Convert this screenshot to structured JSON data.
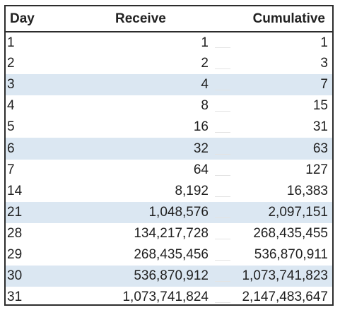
{
  "headers": {
    "day": "Day",
    "receive": "Receive",
    "cumulative": "Cumulative"
  },
  "rows": [
    {
      "day": "1",
      "receive": "1",
      "cumulative": "1"
    },
    {
      "day": "2",
      "receive": "2",
      "cumulative": "3"
    },
    {
      "day": "3",
      "receive": "4",
      "cumulative": "7"
    },
    {
      "day": "4",
      "receive": "8",
      "cumulative": "15"
    },
    {
      "day": "5",
      "receive": "16",
      "cumulative": "31"
    },
    {
      "day": "6",
      "receive": "32",
      "cumulative": "63"
    },
    {
      "day": "7",
      "receive": "64",
      "cumulative": "127"
    },
    {
      "day": "14",
      "receive": "8,192",
      "cumulative": "16,383"
    },
    {
      "day": "21",
      "receive": "1,048,576",
      "cumulative": "2,097,151"
    },
    {
      "day": "28",
      "receive": "134,217,728",
      "cumulative": "268,435,455"
    },
    {
      "day": "29",
      "receive": "268,435,456",
      "cumulative": "536,870,911"
    },
    {
      "day": "30",
      "receive": "536,870,912",
      "cumulative": "1,073,741,823"
    },
    {
      "day": "31",
      "receive": "1,073,741,824",
      "cumulative": "2,147,483,647"
    }
  ],
  "colors": {
    "band": "#dbe7f2",
    "border": "#2c2c2c",
    "text": "#1f1f1f"
  }
}
